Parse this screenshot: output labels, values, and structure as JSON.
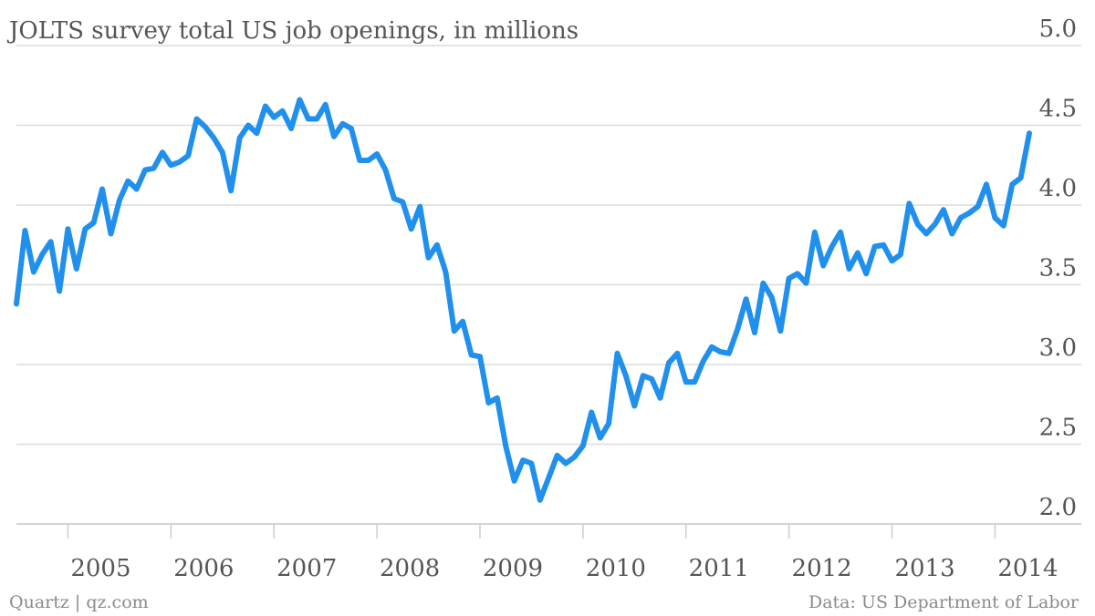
{
  "chart_data": {
    "type": "line",
    "title": "JOLTS survey total US job openings, in millions",
    "source_left": "Quartz | qz.com",
    "source_right": "Data: US Department of Labor",
    "x": [
      2004.5,
      2004.583,
      2004.667,
      2004.75,
      2004.833,
      2004.917,
      2005,
      2005.083,
      2005.167,
      2005.25,
      2005.333,
      2005.417,
      2005.5,
      2005.583,
      2005.667,
      2005.75,
      2005.833,
      2005.917,
      2006,
      2006.083,
      2006.167,
      2006.25,
      2006.333,
      2006.417,
      2006.5,
      2006.583,
      2006.667,
      2006.75,
      2006.833,
      2006.917,
      2007,
      2007.083,
      2007.167,
      2007.25,
      2007.333,
      2007.417,
      2007.5,
      2007.583,
      2007.667,
      2007.75,
      2007.833,
      2007.917,
      2008,
      2008.083,
      2008.167,
      2008.25,
      2008.333,
      2008.417,
      2008.5,
      2008.583,
      2008.667,
      2008.75,
      2008.833,
      2008.917,
      2009,
      2009.083,
      2009.167,
      2009.25,
      2009.333,
      2009.417,
      2009.5,
      2009.583,
      2009.667,
      2009.75,
      2009.833,
      2009.917,
      2010,
      2010.083,
      2010.167,
      2010.25,
      2010.333,
      2010.417,
      2010.5,
      2010.583,
      2010.667,
      2010.75,
      2010.833,
      2010.917,
      2011,
      2011.083,
      2011.167,
      2011.25,
      2011.333,
      2011.417,
      2011.5,
      2011.583,
      2011.667,
      2011.75,
      2011.833,
      2011.917,
      2012,
      2012.083,
      2012.167,
      2012.25,
      2012.333,
      2012.417,
      2012.5,
      2012.583,
      2012.667,
      2012.75,
      2012.833,
      2012.917,
      2013,
      2013.083,
      2013.167,
      2013.25,
      2013.333,
      2013.417,
      2013.5,
      2013.583,
      2013.667,
      2013.75,
      2013.833,
      2013.917,
      2014,
      2014.083,
      2014.167,
      2014.25,
      2014.333
    ],
    "series": [
      {
        "name": "Job openings",
        "color": "#2190ec",
        "values": [
          3.38,
          3.84,
          3.58,
          3.69,
          3.77,
          3.46,
          3.85,
          3.6,
          3.85,
          3.89,
          4.1,
          3.82,
          4.03,
          4.15,
          4.1,
          4.22,
          4.23,
          4.33,
          4.25,
          4.27,
          4.31,
          4.54,
          4.49,
          4.42,
          4.33,
          4.09,
          4.42,
          4.5,
          4.45,
          4.62,
          4.55,
          4.59,
          4.48,
          4.66,
          4.54,
          4.54,
          4.63,
          4.43,
          4.51,
          4.48,
          4.28,
          4.28,
          4.32,
          4.22,
          4.04,
          4.02,
          3.85,
          3.99,
          3.67,
          3.75,
          3.58,
          3.21,
          3.27,
          3.06,
          3.05,
          2.76,
          2.79,
          2.49,
          2.27,
          2.4,
          2.38,
          2.15,
          2.29,
          2.43,
          2.38,
          2.42,
          2.49,
          2.7,
          2.54,
          2.63,
          3.07,
          2.93,
          2.74,
          2.93,
          2.91,
          2.79,
          3.01,
          3.07,
          2.89,
          2.89,
          3.02,
          3.11,
          3.08,
          3.07,
          3.22,
          3.41,
          3.2,
          3.51,
          3.42,
          3.21,
          3.54,
          3.57,
          3.51,
          3.83,
          3.62,
          3.74,
          3.83,
          3.6,
          3.7,
          3.57,
          3.74,
          3.75,
          3.65,
          3.69,
          4.01,
          3.88,
          3.82,
          3.88,
          3.97,
          3.82,
          3.92,
          3.95,
          3.99,
          4.13,
          3.92,
          3.87,
          4.13,
          4.17,
          4.45
        ]
      }
    ],
    "xlim": [
      2004.5,
      2014.333
    ],
    "xticks": [
      2005,
      2006,
      2007,
      2008,
      2009,
      2010,
      2011,
      2012,
      2013,
      2014
    ],
    "ylim": [
      2.0,
      5.0
    ],
    "yticks": [
      {
        "value": 2,
        "label": "2.0"
      },
      2.5,
      {
        "value": 3,
        "label": "3.0"
      },
      3.5,
      {
        "value": 4,
        "label": "4.0"
      },
      4.5,
      {
        "value": 5,
        "label": "5.0"
      }
    ],
    "grid": true
  }
}
